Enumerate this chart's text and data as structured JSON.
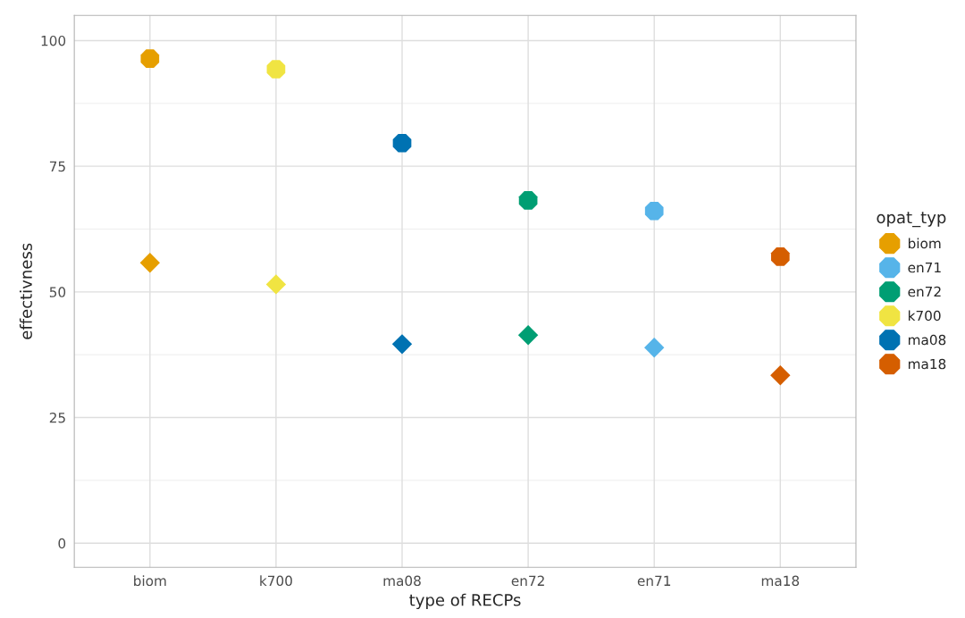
{
  "chart_data": {
    "type": "scatter",
    "xlabel": "type of RECPs",
    "ylabel": "effectivness",
    "legend_title": "opat_typ",
    "categories": [
      "biom",
      "k700",
      "ma08",
      "en72",
      "en71",
      "ma18"
    ],
    "ylim": [
      -4.8,
      105
    ],
    "yticks": [
      0,
      25,
      50,
      75,
      100
    ],
    "grid": true,
    "legend": "right",
    "series": [
      {
        "name": "biom",
        "color": "#e69f00",
        "marker": "circle",
        "values": [
          96.4,
          null,
          null,
          null,
          null,
          null
        ]
      },
      {
        "name": "en71",
        "color": "#56b4e9",
        "marker": "circle",
        "values": [
          null,
          null,
          null,
          null,
          66.1,
          null
        ]
      },
      {
        "name": "en72",
        "color": "#009e73",
        "marker": "circle",
        "values": [
          null,
          null,
          null,
          68.2,
          null,
          null
        ]
      },
      {
        "name": "k700",
        "color": "#f0e442",
        "marker": "circle",
        "values": [
          null,
          94.3,
          null,
          null,
          null,
          null
        ]
      },
      {
        "name": "ma08",
        "color": "#0072b2",
        "marker": "circle",
        "values": [
          null,
          null,
          79.6,
          null,
          null,
          null
        ]
      },
      {
        "name": "ma18",
        "color": "#d55e00",
        "marker": "circle",
        "values": [
          null,
          null,
          null,
          null,
          null,
          57.0
        ]
      },
      {
        "color": "#e69f00",
        "marker": "diamond",
        "values": [
          55.8,
          null,
          null,
          null,
          null,
          null
        ]
      },
      {
        "color": "#f0e442",
        "marker": "diamond",
        "values": [
          null,
          51.5,
          null,
          null,
          null,
          null
        ]
      },
      {
        "color": "#0072b2",
        "marker": "diamond",
        "values": [
          null,
          null,
          39.6,
          null,
          null,
          null
        ]
      },
      {
        "color": "#009e73",
        "marker": "diamond",
        "values": [
          null,
          null,
          null,
          41.4,
          null,
          null
        ]
      },
      {
        "color": "#56b4e9",
        "marker": "diamond",
        "values": [
          null,
          null,
          null,
          null,
          38.9,
          null
        ]
      },
      {
        "color": "#d55e00",
        "marker": "diamond",
        "values": [
          null,
          null,
          null,
          null,
          null,
          33.4
        ]
      }
    ]
  }
}
